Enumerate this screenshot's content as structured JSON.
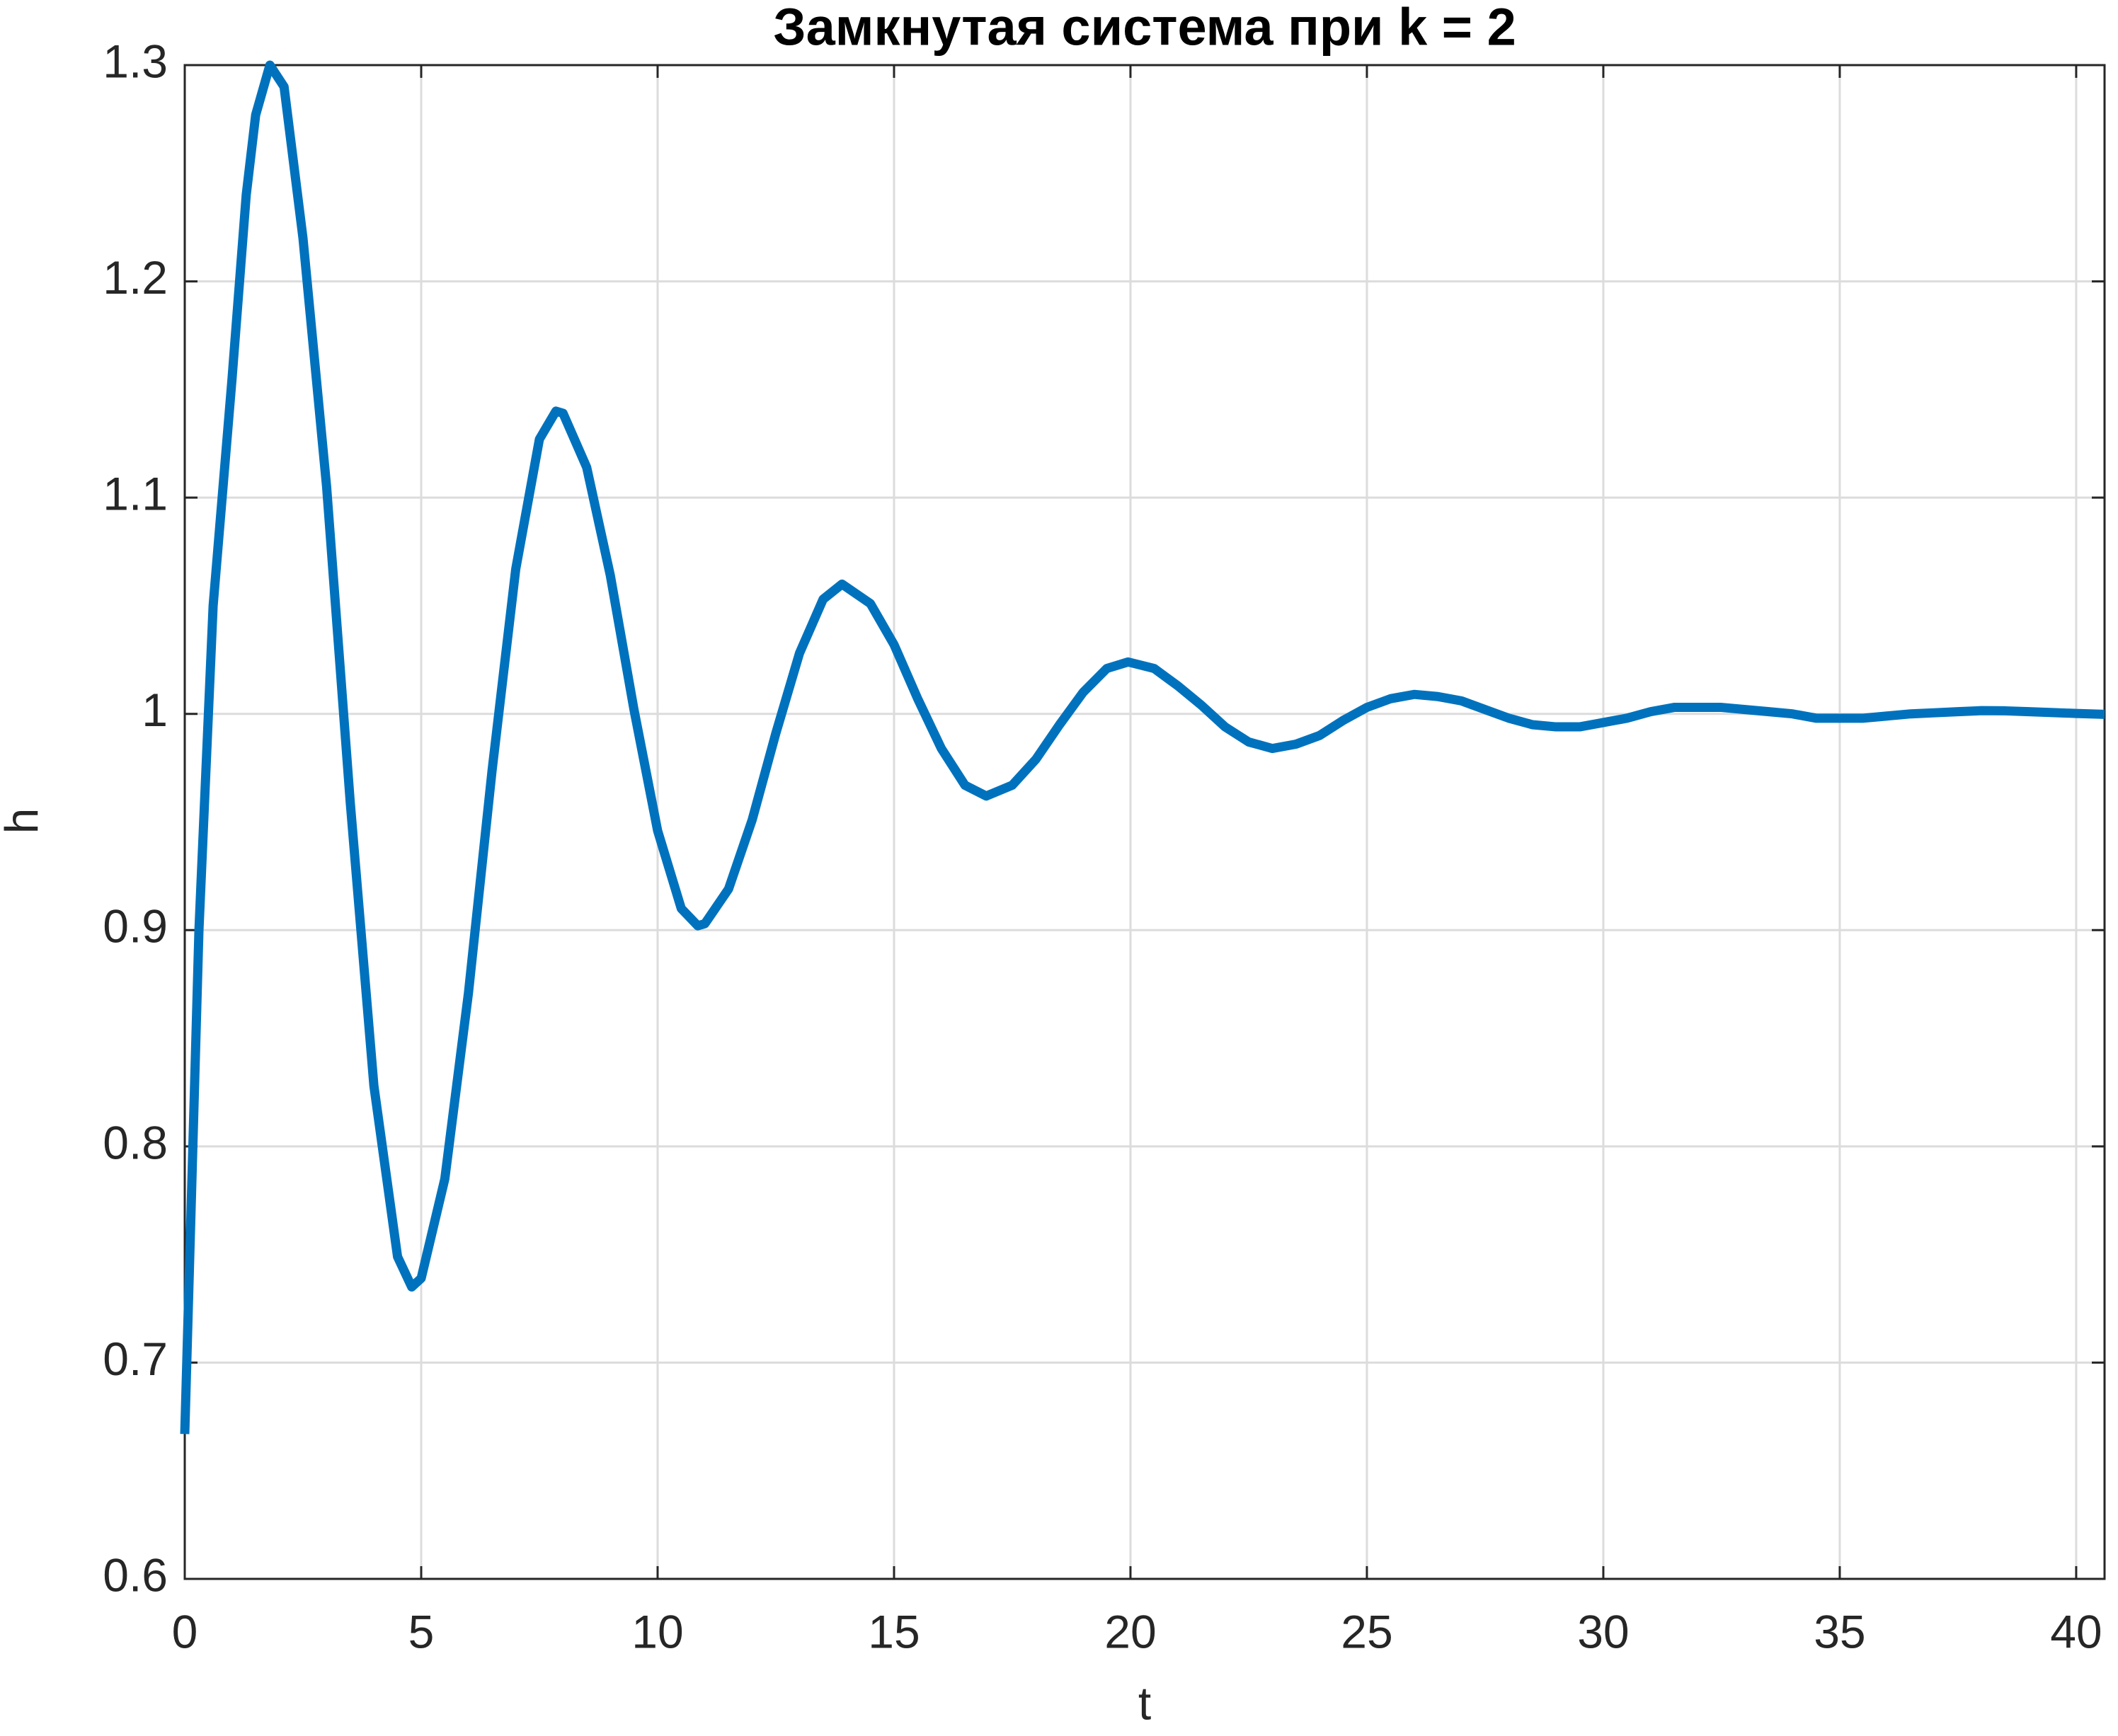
{
  "chart_data": {
    "type": "line",
    "title": "Замкнутая система при k = 2",
    "xlabel": "t",
    "ylabel": "h",
    "x": [
      0,
      0.3,
      0.6,
      1,
      1.3,
      1.5,
      1.8,
      2.1,
      2.5,
      3,
      3.5,
      4,
      4.5,
      4.8,
      5,
      5.5,
      6,
      6.5,
      7,
      7.5,
      7.85,
      8,
      8.5,
      9,
      9.5,
      10,
      10.5,
      10.85,
      11,
      11.5,
      12,
      12.5,
      13,
      13.5,
      13.9,
      14.5,
      15,
      15.5,
      16,
      16.5,
      16.95,
      17.5,
      18,
      18.5,
      19,
      19.5,
      19.95,
      20.5,
      21,
      21.5,
      22,
      22.5,
      23,
      23.5,
      24,
      24.5,
      25,
      25.5,
      26,
      26.5,
      27,
      27.5,
      28,
      28.5,
      29,
      29.5,
      30,
      30.5,
      31,
      31.5,
      32,
      32.5,
      33,
      33.5,
      34,
      34.5,
      35,
      35.5,
      36,
      36.5,
      37,
      37.5,
      38,
      38.5,
      39,
      39.5,
      40,
      40.6
    ],
    "series": [
      {
        "name": "h",
        "color": "#0072bd",
        "values": [
          0.667,
          0.9,
          1.05,
          1.155,
          1.24,
          1.277,
          1.3,
          1.29,
          1.22,
          1.105,
          0.959,
          0.828,
          0.749,
          0.735,
          0.739,
          0.785,
          0.871,
          0.974,
          1.067,
          1.127,
          1.14,
          1.139,
          1.114,
          1.064,
          1.002,
          0.946,
          0.91,
          0.902,
          0.903,
          0.919,
          0.951,
          0.991,
          1.028,
          1.053,
          1.06,
          1.051,
          1.032,
          1.007,
          0.984,
          0.967,
          0.962,
          0.967,
          0.979,
          0.995,
          1.01,
          1.021,
          1.024,
          1.021,
          1.013,
          1.004,
          0.994,
          0.987,
          0.984,
          0.986,
          0.99,
          0.997,
          1.003,
          1.007,
          1.009,
          1.008,
          1.006,
          1.002,
          0.998,
          0.995,
          0.994,
          0.994,
          0.996,
          0.998,
          1.001,
          1.003,
          1.003,
          1.003,
          1.002,
          1.001,
          1,
          0.998,
          0.998,
          0.998,
          0.999,
          1,
          1.0005,
          1.001,
          1.0015,
          1.0014,
          1.001,
          1.0006,
          1.0002,
          0.9998
        ]
      }
    ],
    "xlim": [
      0,
      40.6
    ],
    "ylim": [
      0.6,
      1.3
    ],
    "xticks": [
      0,
      5,
      10,
      15,
      20,
      25,
      30,
      35,
      40
    ],
    "yticks": [
      {
        "value": 0.6,
        "label": "0.6"
      },
      {
        "value": 0.7,
        "label": "0.7"
      },
      {
        "value": 0.8,
        "label": "0.8"
      },
      {
        "value": 0.9,
        "label": "0.9"
      },
      1,
      {
        "value": 1.1,
        "label": "1.1"
      },
      {
        "value": 1.2,
        "label": "1.2"
      },
      {
        "value": 1.3,
        "label": "1.3"
      }
    ],
    "grid": true
  }
}
